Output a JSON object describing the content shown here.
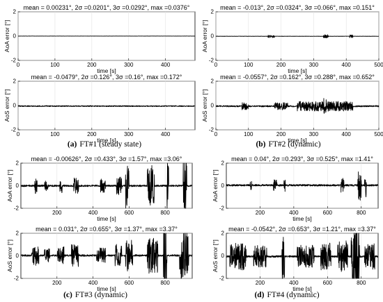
{
  "captions": [
    {
      "letter": "(a)",
      "text": "FT#1 (steady state)"
    },
    {
      "letter": "(b)",
      "text": "FT#2 (dynamic)"
    },
    {
      "letter": "(c)",
      "text": "FT#3 (dynamic)"
    },
    {
      "letter": "(d)",
      "text": "FT#4 (dynamic)"
    }
  ],
  "chart_data": [
    {
      "id": "ft1-aoa",
      "type": "line",
      "title": "mean = 0.00231°, 2σ =0.0201°, 3σ =0.0292°, max =0.0376°",
      "xlabel": "time [s]",
      "ylabel": "AoA error [°]",
      "xlim": [
        0,
        480
      ],
      "ylim": [
        -2,
        2
      ],
      "xticks": [
        0,
        100,
        200,
        300,
        400
      ],
      "yticks": [
        -2,
        0,
        2
      ],
      "grid": true,
      "mean": 0.00231,
      "two_sigma": 0.0201,
      "three_sigma": 0.0292,
      "max": 0.0376,
      "bursts": []
    },
    {
      "id": "ft1-aos",
      "type": "line",
      "title": "mean = -0.0479°, 2σ =0.126°, 3σ =0.16°, max =0.172°",
      "xlabel": "time [s]",
      "ylabel": "AoS error [°]",
      "xlim": [
        0,
        480
      ],
      "ylim": [
        -2,
        2
      ],
      "xticks": [
        0,
        100,
        200,
        300,
        400
      ],
      "yticks": [
        -2,
        0,
        2
      ],
      "grid": true,
      "mean": -0.0479,
      "two_sigma": 0.126,
      "three_sigma": 0.16,
      "max": 0.172,
      "bursts": []
    },
    {
      "id": "ft2-aoa",
      "type": "line",
      "title": "mean = -0.013°, 2σ =0.0324°, 3σ =0.066°, max =0.151°",
      "xlabel": "time [s]",
      "ylabel": "AoA error [°]",
      "xlim": [
        0,
        500
      ],
      "ylim": [
        -2,
        2
      ],
      "xticks": [
        0,
        100,
        200,
        300,
        400,
        500
      ],
      "yticks": [
        -2,
        0,
        2
      ],
      "grid": true,
      "mean": -0.013,
      "two_sigma": 0.0324,
      "three_sigma": 0.066,
      "max": 0.151,
      "bursts": [
        [
          160,
          180,
          0.12
        ],
        [
          330,
          345,
          0.15
        ],
        [
          410,
          420,
          0.12
        ]
      ]
    },
    {
      "id": "ft2-aos",
      "type": "line",
      "title": "mean = -0.0557°, 2σ =0.162°, 3σ =0.288°, max =0.652°",
      "xlabel": "time [s]",
      "ylabel": "AoS error [°]",
      "xlim": [
        0,
        500
      ],
      "ylim": [
        -2,
        2
      ],
      "xticks": [
        0,
        100,
        200,
        300,
        400,
        500
      ],
      "yticks": [
        -2,
        0,
        2
      ],
      "grid": true,
      "mean": -0.0557,
      "two_sigma": 0.162,
      "three_sigma": 0.288,
      "max": 0.652,
      "bursts": [
        [
          80,
          100,
          0.3
        ],
        [
          180,
          220,
          0.3
        ],
        [
          250,
          420,
          0.4
        ],
        [
          330,
          345,
          0.65
        ]
      ]
    },
    {
      "id": "ft3-aoa",
      "type": "line",
      "title": "mean = -0.00626°, 2σ =0.433°, 3σ =1.57°, max =3.06°",
      "xlabel": "time [s]",
      "ylabel": "AoA error [°]",
      "xlim": [
        0,
        950
      ],
      "ylim": [
        -2,
        2
      ],
      "xticks": [
        200,
        400,
        600,
        800
      ],
      "yticks": [
        -2,
        0,
        2
      ],
      "grid": true,
      "mean": -0.00626,
      "two_sigma": 0.433,
      "three_sigma": 1.57,
      "max": 3.06,
      "bursts": [
        [
          75,
          90,
          0.8
        ],
        [
          130,
          150,
          0.5
        ],
        [
          215,
          230,
          0.7
        ],
        [
          290,
          320,
          0.7
        ],
        [
          440,
          470,
          0.6
        ],
        [
          530,
          560,
          0.8
        ],
        [
          580,
          600,
          2.0
        ],
        [
          700,
          740,
          1.8
        ],
        [
          810,
          820,
          3.06
        ],
        [
          900,
          920,
          2.8
        ]
      ]
    },
    {
      "id": "ft3-aos",
      "type": "line",
      "title": "mean = 0.031°, 2σ =0.655°, 3σ =1.37°, max =3.37°",
      "xlabel": "time [s]",
      "ylabel": "AoS error [°]",
      "xlim": [
        0,
        950
      ],
      "ylim": [
        -2,
        2
      ],
      "xticks": [
        200,
        400,
        600,
        800
      ],
      "yticks": [
        -2,
        0,
        2
      ],
      "grid": true,
      "mean": 0.031,
      "two_sigma": 0.655,
      "three_sigma": 1.37,
      "max": 3.37,
      "bursts": [
        [
          60,
          100,
          1.0
        ],
        [
          130,
          160,
          0.6
        ],
        [
          200,
          240,
          0.8
        ],
        [
          280,
          320,
          1.0
        ],
        [
          420,
          470,
          0.7
        ],
        [
          520,
          560,
          1.0
        ],
        [
          580,
          620,
          1.4
        ],
        [
          700,
          760,
          1.6
        ],
        [
          790,
          810,
          3.37
        ],
        [
          880,
          930,
          2.2
        ]
      ]
    },
    {
      "id": "ft4-aoa",
      "type": "line",
      "title": "mean = 0.04°, 2σ =0.293°, 3σ =0.525°, max =1.41°",
      "xlabel": "time [s]",
      "ylabel": "AoA error [°]",
      "xlim": [
        0,
        900
      ],
      "ylim": [
        -2,
        2
      ],
      "xticks": [
        200,
        400,
        600,
        800
      ],
      "yticks": [
        -2,
        0,
        2
      ],
      "grid": true,
      "mean": 0.04,
      "two_sigma": 0.293,
      "three_sigma": 0.525,
      "max": 1.41,
      "bursts": [
        [
          140,
          150,
          0.4
        ],
        [
          280,
          300,
          0.5
        ],
        [
          340,
          350,
          0.6
        ],
        [
          680,
          700,
          0.7
        ],
        [
          780,
          800,
          1.41
        ],
        [
          820,
          830,
          1.2
        ]
      ]
    },
    {
      "id": "ft4-aos",
      "type": "line",
      "title": "mean = -0.0542°, 2σ =0.653°, 3σ =1.21°, max =3.37°",
      "xlabel": "time [s]",
      "ylabel": "AoS error [°]",
      "xlim": [
        0,
        900
      ],
      "ylim": [
        -2,
        2
      ],
      "xticks": [
        200,
        400,
        600,
        800
      ],
      "yticks": [
        -2,
        0,
        2
      ],
      "grid": true,
      "mean": -0.0542,
      "two_sigma": 0.653,
      "three_sigma": 1.21,
      "max": 3.37,
      "bursts": [
        [
          20,
          120,
          1.2
        ],
        [
          160,
          240,
          1.0
        ],
        [
          330,
          345,
          2.5
        ],
        [
          420,
          520,
          1.0
        ],
        [
          560,
          620,
          1.2
        ],
        [
          660,
          720,
          1.4
        ],
        [
          740,
          790,
          3.37
        ],
        [
          820,
          880,
          1.2
        ]
      ]
    }
  ]
}
